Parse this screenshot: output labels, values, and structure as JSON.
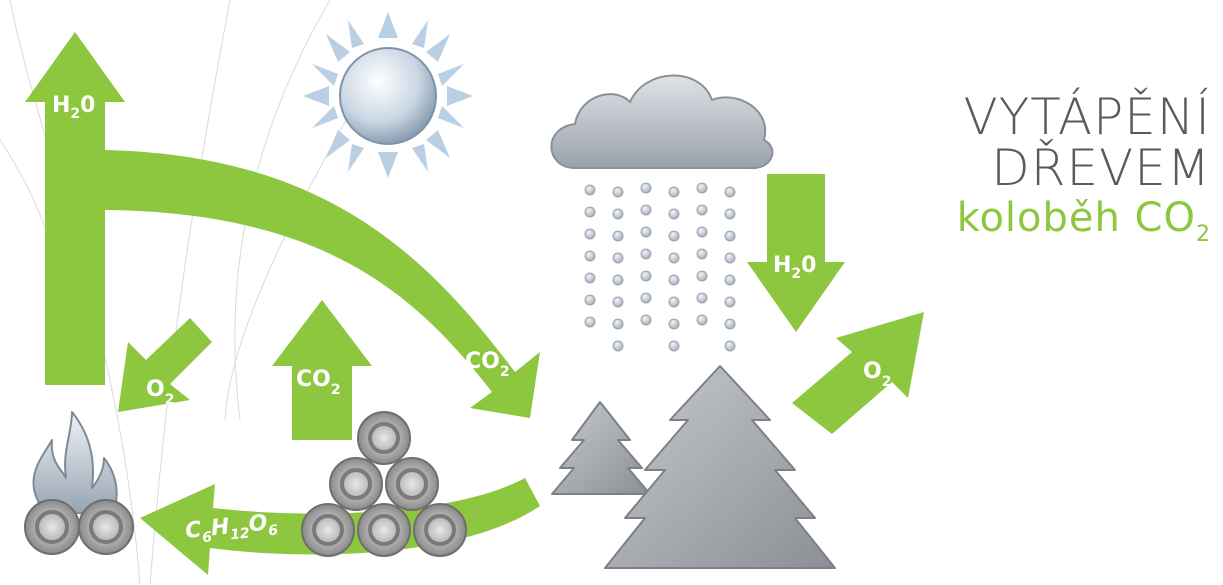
{
  "title": {
    "line1": "VYTÁPĚNÍ",
    "line2": "DŘEVEM",
    "subtitle": "koloběh CO",
    "subtitle_sub": "2"
  },
  "colors": {
    "accent_green": "#8dc63f",
    "title_gray": "#5a5a5a",
    "object_gray": "#9a9da2"
  },
  "labels": {
    "h2o": {
      "main": "H",
      "sub": "2",
      "tail": "0"
    },
    "co2": {
      "main": "CO",
      "sub": "2"
    },
    "o2": {
      "main": "O",
      "sub": "2"
    },
    "glucose": {
      "c": "C",
      "c_sub": "6",
      "h": "H",
      "h_sub": "12",
      "o": "O",
      "o_sub": "6"
    }
  },
  "icons": [
    "sun-icon",
    "cloud-icon",
    "rain-icon",
    "tree-icon",
    "fire-icon",
    "log-pile-icon"
  ]
}
